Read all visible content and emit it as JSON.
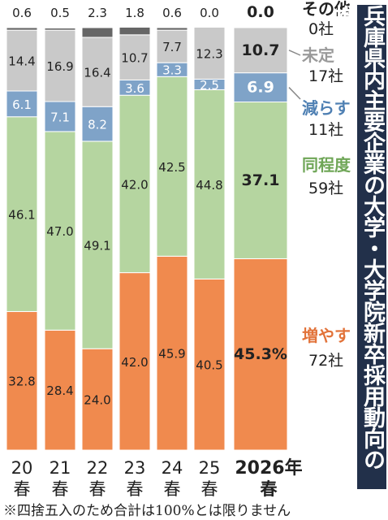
{
  "title": "兵庫県内主要企業の大学・大学院新卒採用動向の推移",
  "note": "※四捨五入のため合計は100%とは限りません",
  "colors": {
    "increase": "#f08a4e",
    "same": "#b5d5a0",
    "decrease": "#7fa3c8",
    "undecided": "#c9c9c9",
    "other": "#666666",
    "increase_text": "#e2733a",
    "decrease_text": "#4f80b3",
    "same_text": "#6fa657",
    "undecided_text": "#9a9a9a"
  },
  "chart_data": {
    "type": "bar",
    "stacked": true,
    "orientation": "vertical",
    "ylim": [
      0,
      100
    ],
    "grid": false,
    "categories": [
      {
        "top": "20",
        "bottom": "春"
      },
      {
        "top": "21",
        "bottom": "春"
      },
      {
        "top": "22",
        "bottom": "春"
      },
      {
        "top": "23",
        "bottom": "春"
      },
      {
        "top": "24",
        "bottom": "春"
      },
      {
        "top": "25",
        "bottom": "春"
      },
      {
        "top": "2026年",
        "bottom": "春"
      }
    ],
    "series": [
      {
        "key": "increase",
        "values": [
          32.8,
          28.4,
          24.0,
          42.0,
          45.9,
          40.5,
          45.3
        ],
        "labels": [
          "32.8",
          "28.4",
          "24.0",
          "42.0",
          "45.9",
          "40.5",
          "45.3%"
        ]
      },
      {
        "key": "same",
        "values": [
          46.1,
          47.0,
          49.1,
          42.0,
          42.5,
          44.8,
          37.1
        ],
        "labels": [
          "46.1",
          "47.0",
          "49.1",
          "42.0",
          "42.5",
          "44.8",
          "37.1"
        ]
      },
      {
        "key": "decrease",
        "values": [
          6.1,
          7.1,
          8.2,
          3.6,
          3.3,
          2.5,
          6.9
        ],
        "labels": [
          "6.1",
          "7.1",
          "8.2",
          "3.6",
          "3.3",
          "2.5",
          "6.9"
        ]
      },
      {
        "key": "undecided",
        "values": [
          14.4,
          16.9,
          16.4,
          10.7,
          7.7,
          12.3,
          10.7
        ],
        "labels": [
          "14.4",
          "16.9",
          "16.4",
          "10.7",
          "7.7",
          "12.3",
          "10.7"
        ]
      },
      {
        "key": "other",
        "values": [
          0.6,
          0.5,
          2.3,
          1.8,
          0.6,
          0.0,
          0.0
        ],
        "labels": [
          "0.6",
          "0.5",
          "2.3",
          "1.8",
          "0.6",
          "0.0",
          "0.0"
        ]
      }
    ],
    "legend": [
      {
        "key": "other",
        "name": "その他",
        "count": "0社"
      },
      {
        "key": "undecided",
        "name": "未定",
        "count": "17社"
      },
      {
        "key": "decrease",
        "name": "減らす",
        "count": "11社"
      },
      {
        "key": "same",
        "name": "同程度",
        "count": "59社"
      },
      {
        "key": "increase",
        "name": "増やす",
        "count": "72社"
      }
    ]
  }
}
